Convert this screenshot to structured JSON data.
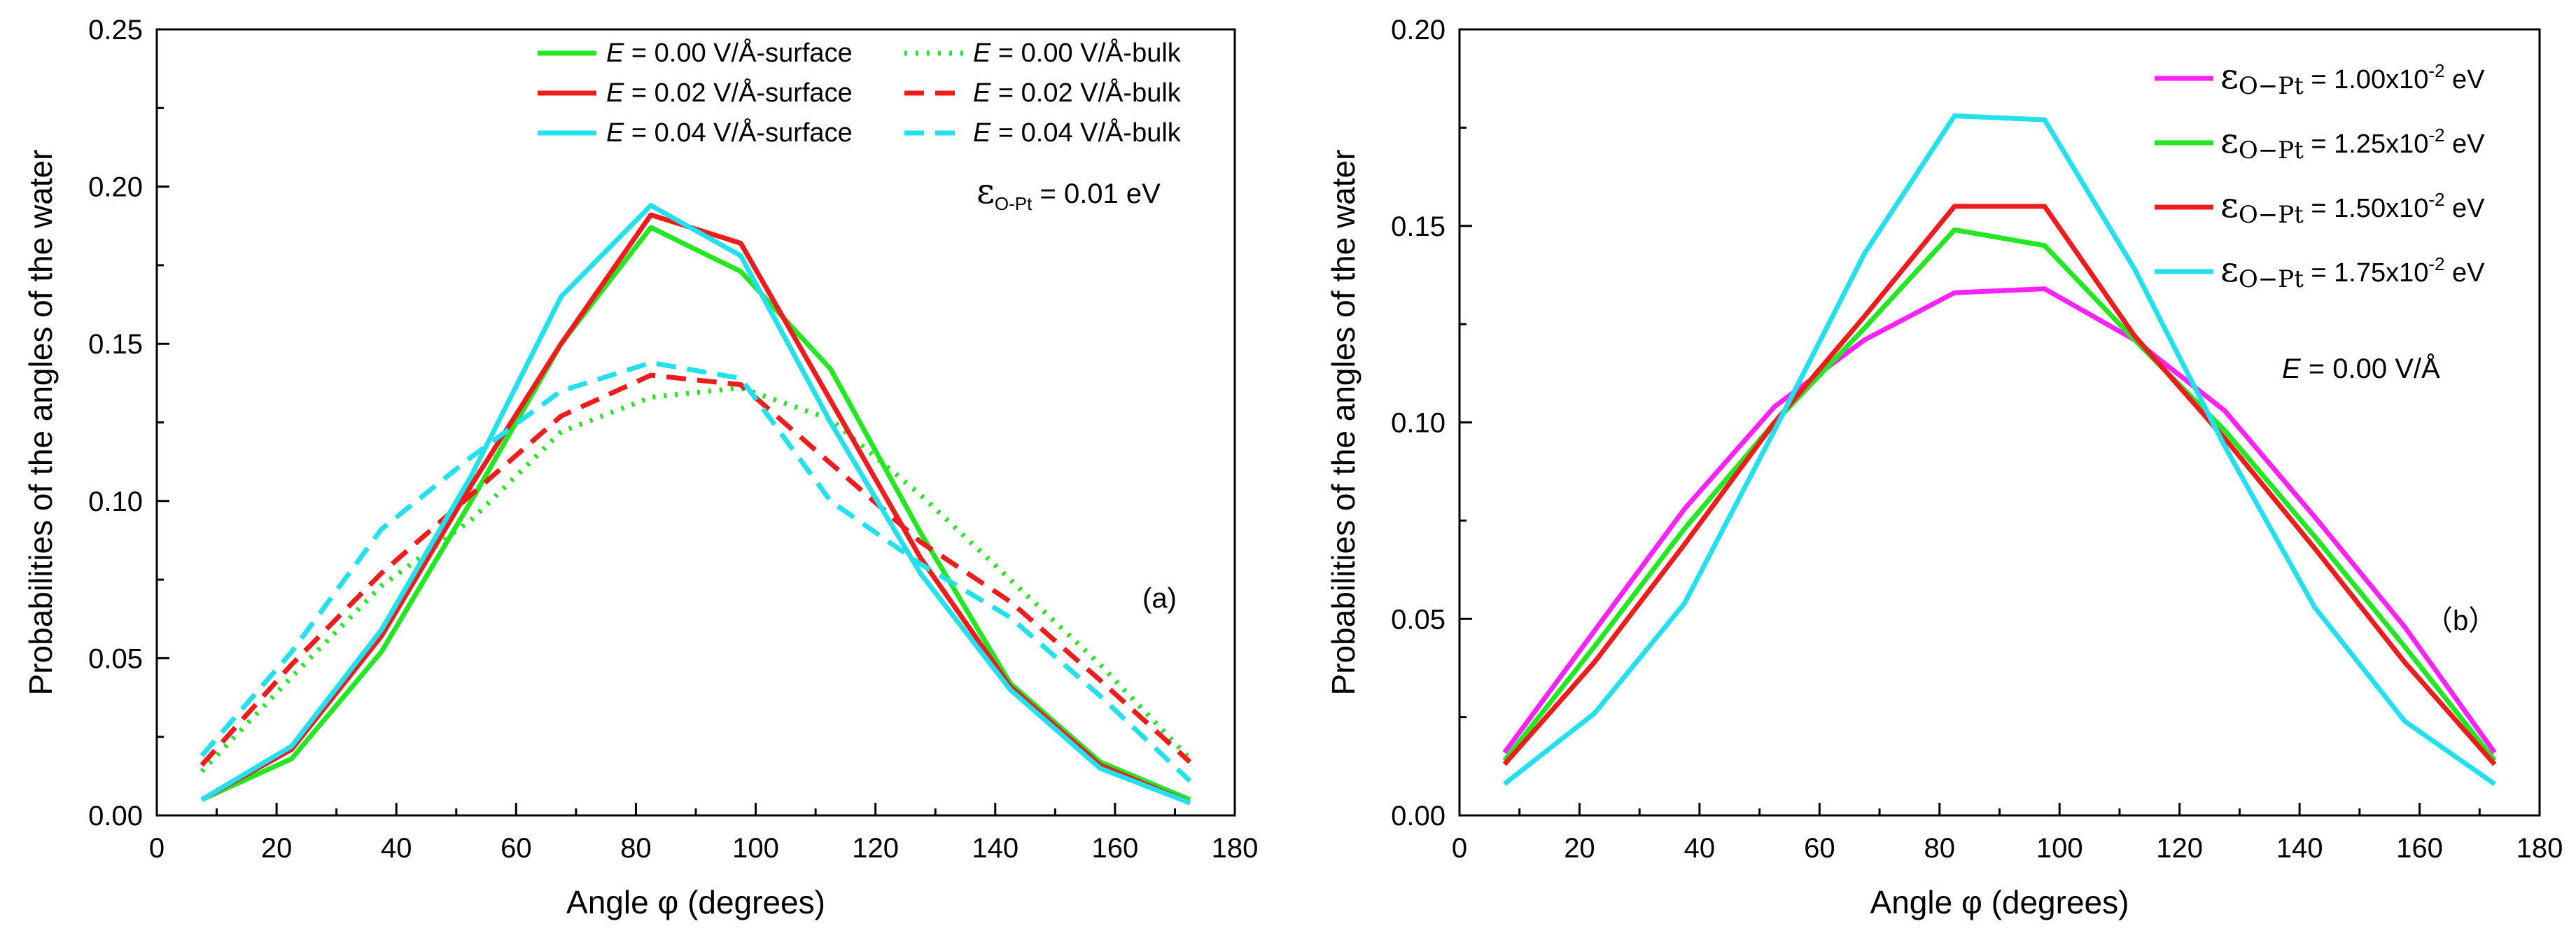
{
  "chart_data": [
    {
      "type": "line",
      "panel_label": "(a)",
      "xlabel": "Angle φ  (degrees)",
      "ylabel": "Probabilities of the angles of the water",
      "xlim": [
        0,
        180
      ],
      "ylim": [
        0,
        0.25
      ],
      "xticks": [
        "0",
        "20",
        "40",
        "60",
        "80",
        "100",
        "120",
        "140",
        "160",
        "180"
      ],
      "yticks": [
        "0.00",
        "0.05",
        "0.10",
        "0.15",
        "0.20",
        "0.25"
      ],
      "x": [
        7.5,
        22.5,
        37.5,
        52.5,
        67.5,
        82.5,
        97.5,
        112.5,
        127.5,
        142.5,
        157.5,
        172.5
      ],
      "annotation": {
        "symbol": "ε",
        "subscript": "O-Pt",
        "text": " = 0.01 eV"
      },
      "legend": {
        "columns": 2,
        "position": "top-right"
      },
      "series": [
        {
          "name": "E = 0.00 V/Å-surface",
          "legend_var": "E",
          "legend_rest": " = 0.00 V/Å-surface",
          "color": "#22e822",
          "dash": "solid",
          "values": [
            0.005,
            0.018,
            0.052,
            0.1,
            0.15,
            0.187,
            0.173,
            0.142,
            0.09,
            0.042,
            0.017,
            0.005
          ]
        },
        {
          "name": "E = 0.00 V/Å-bulk",
          "legend_var": "E",
          "legend_rest": " = 0.00 V/Å-bulk",
          "color": "#22e822",
          "dash": "dot",
          "values": [
            0.014,
            0.044,
            0.073,
            0.094,
            0.122,
            0.133,
            0.136,
            0.126,
            0.102,
            0.075,
            0.048,
            0.018
          ]
        },
        {
          "name": "E = 0.02 V/Å-surface",
          "legend_var": "E",
          "legend_rest": " = 0.02 V/Å-surface",
          "color": "#ee1c1c",
          "dash": "solid",
          "values": [
            0.005,
            0.021,
            0.057,
            0.105,
            0.15,
            0.191,
            0.182,
            0.132,
            0.082,
            0.041,
            0.016,
            0.004
          ]
        },
        {
          "name": "E = 0.02 V/Å-bulk",
          "legend_var": "E",
          "legend_rest": " = 0.02 V/Å-bulk",
          "color": "#ee1c1c",
          "dash": "dash",
          "values": [
            0.016,
            0.048,
            0.077,
            0.102,
            0.127,
            0.14,
            0.137,
            0.112,
            0.087,
            0.068,
            0.043,
            0.017
          ]
        },
        {
          "name": "E = 0.04 V/Å-surface",
          "legend_var": "E",
          "legend_rest": " = 0.04 V/Å-surface",
          "color": "#22e0ee",
          "dash": "solid",
          "values": [
            0.005,
            0.022,
            0.059,
            0.108,
            0.165,
            0.194,
            0.178,
            0.125,
            0.077,
            0.04,
            0.015,
            0.004
          ]
        },
        {
          "name": "E = 0.04 V/Å-bulk",
          "legend_var": "E",
          "legend_rest": " = 0.04 V/Å-bulk",
          "color": "#22e0ee",
          "dash": "dash",
          "values": [
            0.019,
            0.052,
            0.091,
            0.114,
            0.135,
            0.144,
            0.139,
            0.1,
            0.08,
            0.063,
            0.038,
            0.011
          ]
        }
      ]
    },
    {
      "type": "line",
      "panel_label": "（b）",
      "xlabel": "Angle φ (degrees)",
      "ylabel": "Probabilities of the angles of the water",
      "xlim": [
        0,
        180
      ],
      "ylim": [
        0,
        0.2
      ],
      "xticks": [
        "0",
        "20",
        "40",
        "60",
        "80",
        "100",
        "120",
        "140",
        "160",
        "180"
      ],
      "yticks": [
        "0.00",
        "0.05",
        "0.10",
        "0.15",
        "0.20"
      ],
      "x": [
        7.5,
        22.5,
        37.5,
        52.5,
        67.5,
        82.5,
        97.5,
        112.5,
        127.5,
        142.5,
        157.5,
        172.5
      ],
      "annotation": {
        "var": "E",
        "text": " = 0.00 V/Å"
      },
      "legend": {
        "columns": 1,
        "position": "top-right"
      },
      "series": [
        {
          "name": "εO−Pt = 1.00x10-2 eV",
          "legend_symbol": "ε",
          "legend_sub": "O−Pt",
          "legend_mid": " = 1.00x10",
          "legend_sup": "-2",
          "legend_end": " eV",
          "color": "#ff22ff",
          "dash": "solid",
          "values": [
            0.016,
            0.047,
            0.078,
            0.104,
            0.121,
            0.133,
            0.134,
            0.121,
            0.103,
            0.076,
            0.048,
            0.016
          ]
        },
        {
          "name": "εO−Pt = 1.25x10-2 eV",
          "legend_symbol": "ε",
          "legend_sub": "O−Pt",
          "legend_mid": " = 1.25x10",
          "legend_sup": "-2",
          "legend_end": " eV",
          "color": "#22e822",
          "dash": "solid",
          "values": [
            0.014,
            0.043,
            0.073,
            0.1,
            0.124,
            0.149,
            0.145,
            0.121,
            0.098,
            0.071,
            0.043,
            0.014
          ]
        },
        {
          "name": "εO−Pt = 1.50x10-2 eV",
          "legend_symbol": "ε",
          "legend_sub": "O−Pt",
          "legend_mid": " = 1.50x10",
          "legend_sup": "-2",
          "legend_end": " eV",
          "color": "#ee1c1c",
          "dash": "solid",
          "values": [
            0.013,
            0.039,
            0.069,
            0.1,
            0.127,
            0.155,
            0.155,
            0.122,
            0.096,
            0.068,
            0.039,
            0.013
          ]
        },
        {
          "name": "εO−Pt = 1.75x10-2 eV",
          "legend_symbol": "ε",
          "legend_sub": "O−Pt",
          "legend_mid": " = 1.75x10",
          "legend_sup": "-2",
          "legend_end": " eV",
          "color": "#22e0ee",
          "dash": "solid",
          "values": [
            0.008,
            0.026,
            0.054,
            0.098,
            0.143,
            0.178,
            0.177,
            0.139,
            0.094,
            0.053,
            0.024,
            0.008
          ]
        }
      ]
    }
  ]
}
